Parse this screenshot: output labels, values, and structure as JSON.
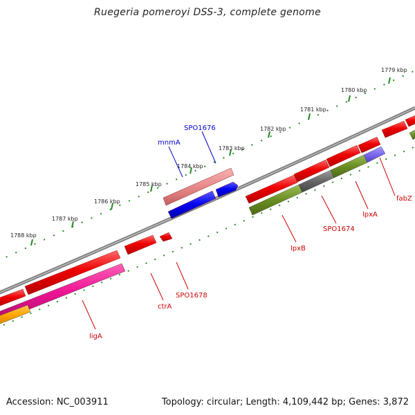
{
  "title": "Ruegeria pomeroyi DSS-3, complete genome",
  "footer": {
    "accession": "Accession: NC_003911",
    "summary": "Topology: circular; Length: 4,109,442 bp; Genes: 3,872"
  },
  "scale_labels": [
    "1779 kbp",
    "1780 kbp",
    "1781 kbp",
    "1782 kbp",
    "1783 kbp",
    "1784 kbp",
    "1785 kbp",
    "1786 kbp",
    "1787 kbp",
    "1788 kbp"
  ],
  "gene_labels": [
    {
      "text": "SPO1676",
      "color": "#0000cc"
    },
    {
      "text": "mnmA",
      "color": "#0000cc"
    },
    {
      "text": "fabZ",
      "color": "#cc0000"
    },
    {
      "text": "lpxA",
      "color": "#cc0000"
    },
    {
      "text": "SPO1674",
      "color": "#cc0000"
    },
    {
      "text": "lpxB",
      "color": "#cc0000"
    },
    {
      "text": "SPO1678",
      "color": "#cc0000"
    },
    {
      "text": "ctrA",
      "color": "#cc0000"
    },
    {
      "text": "ligA",
      "color": "#cc0000"
    }
  ],
  "colors": {
    "backbone": "#7f7f7f",
    "forward_gene": "#ee0000",
    "reverse_gene": "#ee0000",
    "rna_light": "#e88a8a",
    "blue_gene": "#0000ee",
    "olive_feature": "#6b8e23",
    "gray_feature": "#666666",
    "purple_feature": "#7b68ee",
    "pink_feature": "#ee1493",
    "orange_feature": "#ffa500",
    "tick": "#227722"
  }
}
